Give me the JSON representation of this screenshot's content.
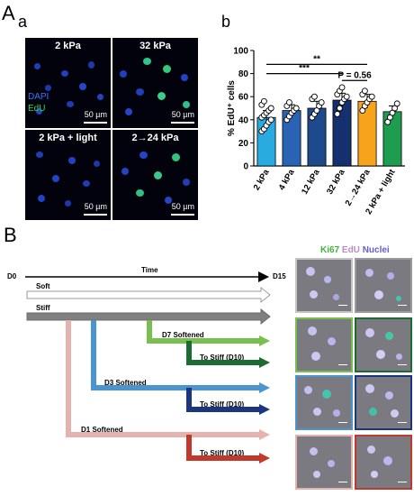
{
  "panel_a": {
    "letter": "A",
    "sub_a": "a",
    "sub_b": "b",
    "images": [
      {
        "title": "2 kPa",
        "scale": "50 µm"
      },
      {
        "title": "32 kPa",
        "scale": "50 µm"
      },
      {
        "title": "2 kPa + light",
        "scale": "50 µm"
      },
      {
        "title": "2→24 kPa",
        "scale": "50 µm"
      }
    ],
    "legend_dapi": "DAPI",
    "legend_edu": "EdU"
  },
  "chart_data": {
    "type": "bar",
    "categories": [
      "2 kPa",
      "4 kPa",
      "12 kPa",
      "32 kPa",
      "2→24 kPa",
      "2 kPa + light"
    ],
    "values": [
      42,
      48,
      50,
      57,
      56,
      47
    ],
    "errors": [
      6,
      5,
      6,
      6,
      6,
      5
    ],
    "colors": [
      "#29aae1",
      "#2b63b4",
      "#1e4a8c",
      "#14306e",
      "#f7a31c",
      "#1e9c4f"
    ],
    "ylabel": "% EdU⁺ cells",
    "ylim": [
      0,
      100
    ],
    "yticks": [
      0,
      20,
      40,
      60,
      80,
      100
    ],
    "points": [
      [
        30,
        32,
        35,
        38,
        40,
        42,
        44,
        46,
        48,
        50,
        53,
        56
      ],
      [
        40,
        43,
        46,
        48,
        50,
        52,
        55
      ],
      [
        42,
        45,
        48,
        52,
        55,
        58,
        60
      ],
      [
        45,
        50,
        55,
        58,
        60,
        62,
        65,
        68
      ],
      [
        48,
        52,
        55,
        58,
        60,
        62,
        65
      ],
      [
        38,
        42,
        46,
        50,
        54
      ]
    ],
    "significance": [
      {
        "from": 0,
        "to": 4,
        "label": "**",
        "level": 88
      },
      {
        "from": 0,
        "to": 3,
        "label": "***",
        "level": 80
      },
      {
        "from": 3,
        "to": 4,
        "label": "P = 0.56",
        "level": 74
      }
    ]
  },
  "panel_b": {
    "letter": "B",
    "time_start": "D0",
    "time_label": "Time",
    "time_end": "D15",
    "soft": "Soft",
    "stiff": "Stiff",
    "d7": "D7 Softened",
    "d3": "D3 Softened",
    "d1": "D1 Softened",
    "to_stiff": "To Stiff (D10)",
    "col_ki67": "Ki67",
    "col_edu": "EdU",
    "col_nuclei": "Nuclei",
    "colors": {
      "soft_border": "#9a9a9a",
      "stiff": "#808080",
      "d7": "#77bf4f",
      "d7_stiff": "#1c6b33",
      "d3": "#4a95cf",
      "d3_stiff": "#1b3580",
      "d1": "#e6b2ad",
      "d1_stiff": "#c0392b"
    }
  }
}
